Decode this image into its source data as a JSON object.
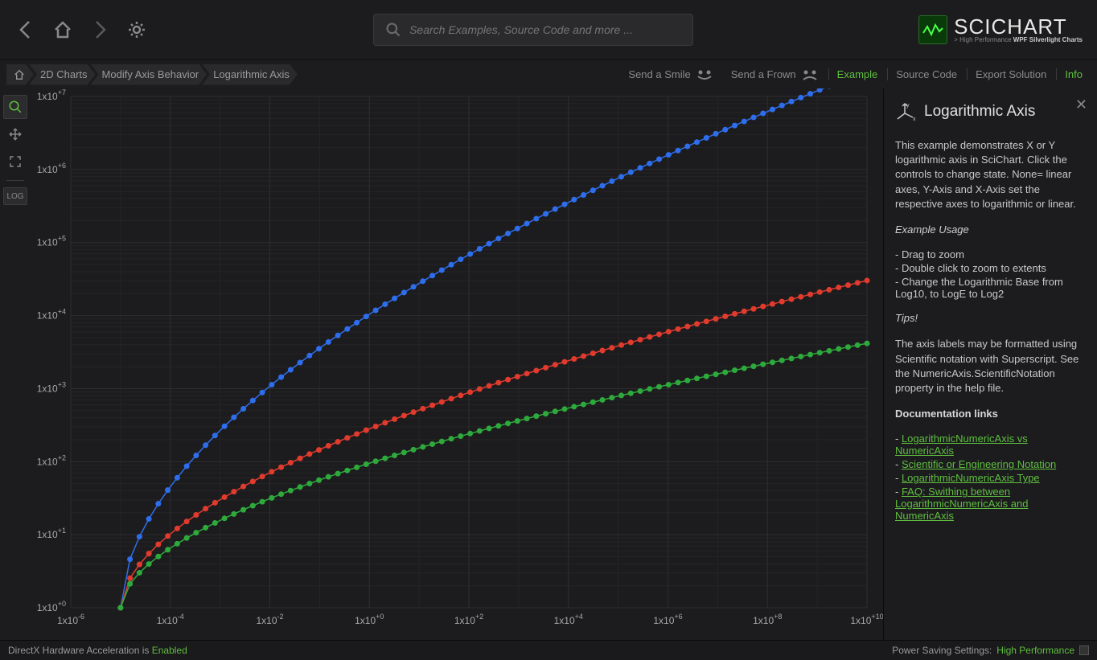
{
  "search": {
    "placeholder": "Search Examples, Source Code and more ..."
  },
  "logo": {
    "main": "SCICHART",
    "sub1": "> High Performance ",
    "sub2": "WPF Silverlight Charts"
  },
  "breadcrumbs": [
    "2D Charts",
    "Modify Axis Behavior",
    "Logarithmic Axis"
  ],
  "feedback": {
    "smile": "Send a Smile",
    "frown": "Send a Frown"
  },
  "tabs": {
    "example": "Example",
    "source": "Source Code",
    "export": "Export Solution",
    "info": "Info"
  },
  "toolbar": {
    "log_label": "LOG"
  },
  "chart": {
    "type": "line+scatter",
    "background": "#1c1c1e",
    "grid_major_color": "#2e2e30",
    "grid_minor_color": "#242426",
    "axis_label_color": "#a8a8a8",
    "x": {
      "scale": "log10",
      "min_exp": -6,
      "max_exp": 10,
      "tick_step": 2
    },
    "y": {
      "scale": "log10",
      "min_exp": 0,
      "max_exp": 7,
      "tick_step": 1
    },
    "series": [
      {
        "name": "blue",
        "color": "#2e6eed",
        "marker_r": 3.5,
        "curve": {
          "x0_exp": -5.0,
          "y0_exp": 0.0,
          "x1_exp": 10.0,
          "y1_exp": 7.35,
          "points": 80,
          "shape": 0.55
        }
      },
      {
        "name": "red",
        "color": "#e23b2e",
        "marker_r": 3.5,
        "curve": {
          "x0_exp": -5.0,
          "y0_exp": 0.0,
          "x1_exp": 10.0,
          "y1_exp": 4.48,
          "points": 80,
          "shape": 0.55
        }
      },
      {
        "name": "green",
        "color": "#2eaa3c",
        "marker_r": 3.5,
        "curve": {
          "x0_exp": -5.0,
          "y0_exp": 0.0,
          "x1_exp": 10.0,
          "y1_exp": 3.62,
          "points": 80,
          "shape": 0.55
        }
      }
    ]
  },
  "info": {
    "title": "Logarithmic Axis",
    "intro": "This example demonstrates X or Y logarithmic axis in SciChart. Click the controls to change state. None= linear axes, Y-Axis and X-Axis set the respective axes to logarithmic or linear.",
    "usage_head": "Example Usage",
    "usage": [
      " - Drag to zoom",
      " - Double click to zoom to extents",
      " - Change the Logarithmic Base from Log10, to LogE to Log2"
    ],
    "tips_head": "Tips!",
    "tips": "The axis labels may be formatted using Scientific notation with Superscript. See the NumericAxis.ScientificNotation property in the help file.",
    "docs_head": "Documentation links",
    "docs": [
      "LogarithmicNumericAxis vs NumericAxis",
      "Scientific or Engineering Notation",
      "LogarithmicNumericAxis Type",
      "FAQ: Swithing between LogarithmicNumericAxis and NumericAxis"
    ]
  },
  "status": {
    "left_a": "DirectX Hardware Acceleration is ",
    "left_b": "Enabled",
    "right_a": "Power Saving Settings: ",
    "right_b": "High Performance"
  }
}
